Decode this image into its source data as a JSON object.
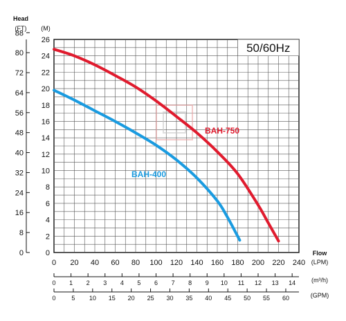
{
  "chart_data": {
    "type": "line",
    "frequency_label": "50/60Hz",
    "y_axis_left": {
      "title": "Head",
      "unit": "(FT)",
      "ticks": [
        0,
        8,
        16,
        24,
        32,
        40,
        48,
        56,
        64,
        72,
        80,
        88
      ]
    },
    "y_axis_right": {
      "unit": "(M)",
      "ylim": [
        0,
        26
      ],
      "ticks": [
        0,
        2,
        4,
        6,
        8,
        10,
        12,
        14,
        16,
        18,
        20,
        22,
        24,
        26
      ]
    },
    "x_axis_main": {
      "title": "Flow",
      "unit": "(LPM)",
      "xlim": [
        0,
        240
      ],
      "ticks": [
        0,
        20,
        40,
        60,
        80,
        100,
        120,
        140,
        160,
        180,
        200,
        220,
        240
      ]
    },
    "x_axis_m3h": {
      "unit": "(m³/h)",
      "ticks": [
        0,
        1,
        2,
        3,
        4,
        5,
        6,
        7,
        8,
        9,
        10,
        11,
        12,
        13,
        14
      ]
    },
    "x_axis_gpm": {
      "unit": "(GPM)",
      "ticks": [
        0,
        5,
        10,
        15,
        20,
        25,
        30,
        35,
        40,
        45,
        50,
        55,
        60
      ]
    },
    "grid": true,
    "series": [
      {
        "name": "BAH-750",
        "color": "#e01b2e",
        "x": [
          0,
          20,
          40,
          60,
          80,
          100,
          120,
          140,
          160,
          180,
          200,
          210,
          220
        ],
        "y": [
          24.8,
          24.0,
          22.9,
          21.6,
          20.2,
          18.5,
          16.6,
          14.6,
          12.3,
          9.6,
          5.8,
          3.6,
          1.4
        ]
      },
      {
        "name": "BAH-400",
        "color": "#1a9be0",
        "x": [
          0,
          20,
          40,
          60,
          80,
          100,
          120,
          140,
          160,
          170,
          182
        ],
        "y": [
          19.8,
          18.6,
          17.3,
          16.0,
          14.6,
          13.1,
          11.3,
          9.1,
          6.3,
          4.3,
          1.5
        ]
      }
    ]
  }
}
